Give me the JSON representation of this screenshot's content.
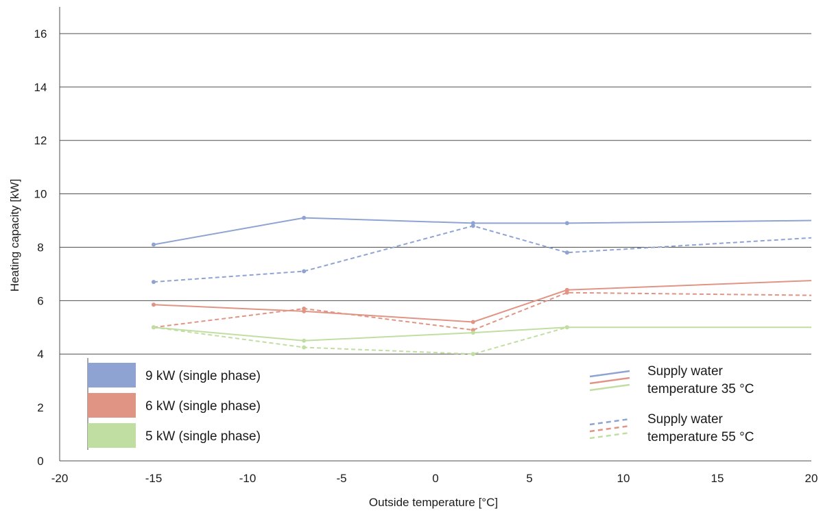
{
  "chart_data": {
    "type": "line",
    "title": "",
    "xlabel": "Outside temperature [°C]",
    "ylabel": "Heating capacity [kW]",
    "xlim": [
      -20,
      20
    ],
    "ylim": [
      0,
      17
    ],
    "x_ticks": [
      -20,
      -15,
      -10,
      -5,
      0,
      5,
      10,
      15,
      20
    ],
    "y_ticks": [
      0,
      2,
      4,
      6,
      8,
      10,
      12,
      14,
      16
    ],
    "y_gridlines": [
      4,
      6,
      8,
      10,
      12,
      14,
      16
    ],
    "grid": "horizontal",
    "colors": {
      "9kW": "#8fa3d2",
      "6kW": "#e09484",
      "5kW": "#c1dea2"
    },
    "series": [
      {
        "name": "9 kW (single phase)",
        "supply": "35",
        "style": "solid",
        "color": "#8fa3d2",
        "x": [
          -15,
          -7,
          2,
          7,
          20
        ],
        "y": [
          8.1,
          9.1,
          8.9,
          8.9,
          9.0
        ]
      },
      {
        "name": "9 kW (single phase)",
        "supply": "55",
        "style": "dashed",
        "color": "#8fa3d2",
        "x": [
          -15,
          -7,
          2,
          7,
          20
        ],
        "y": [
          6.7,
          7.1,
          8.8,
          7.8,
          8.35
        ]
      },
      {
        "name": "6 kW (single phase)",
        "supply": "35",
        "style": "solid",
        "color": "#e09484",
        "x": [
          -15,
          -7,
          2,
          7,
          20
        ],
        "y": [
          5.85,
          5.6,
          5.2,
          6.4,
          6.75
        ]
      },
      {
        "name": "6 kW (single phase)",
        "supply": "55",
        "style": "dashed",
        "color": "#e09484",
        "x": [
          -15,
          -7,
          2,
          7,
          20
        ],
        "y": [
          5.0,
          5.7,
          4.9,
          6.3,
          6.2
        ]
      },
      {
        "name": "5 kW (single phase)",
        "supply": "35",
        "style": "solid",
        "color": "#c1dea2",
        "x": [
          -15,
          -7,
          2,
          7,
          20
        ],
        "y": [
          5.0,
          4.5,
          4.8,
          5.0,
          5.0
        ]
      },
      {
        "name": "5 kW (single phase)",
        "supply": "55",
        "style": "dashed",
        "color": "#c1dea2",
        "x": [
          -15,
          -7,
          2,
          7
        ],
        "y": [
          5.0,
          4.25,
          4.0,
          5.0
        ]
      }
    ],
    "legend": {
      "models": [
        {
          "label": "9 kW (single phase)",
          "color": "#8fa3d2"
        },
        {
          "label": "6 kW (single phase)",
          "color": "#e09484"
        },
        {
          "label": "5 kW (single phase)",
          "color": "#c1dea2"
        }
      ],
      "styles": [
        {
          "style": "solid",
          "line1": "Supply water",
          "line2": "temperature 35 °C"
        },
        {
          "style": "dashed",
          "line1": "Supply water",
          "line2": "temperature 55 °C"
        }
      ]
    }
  }
}
